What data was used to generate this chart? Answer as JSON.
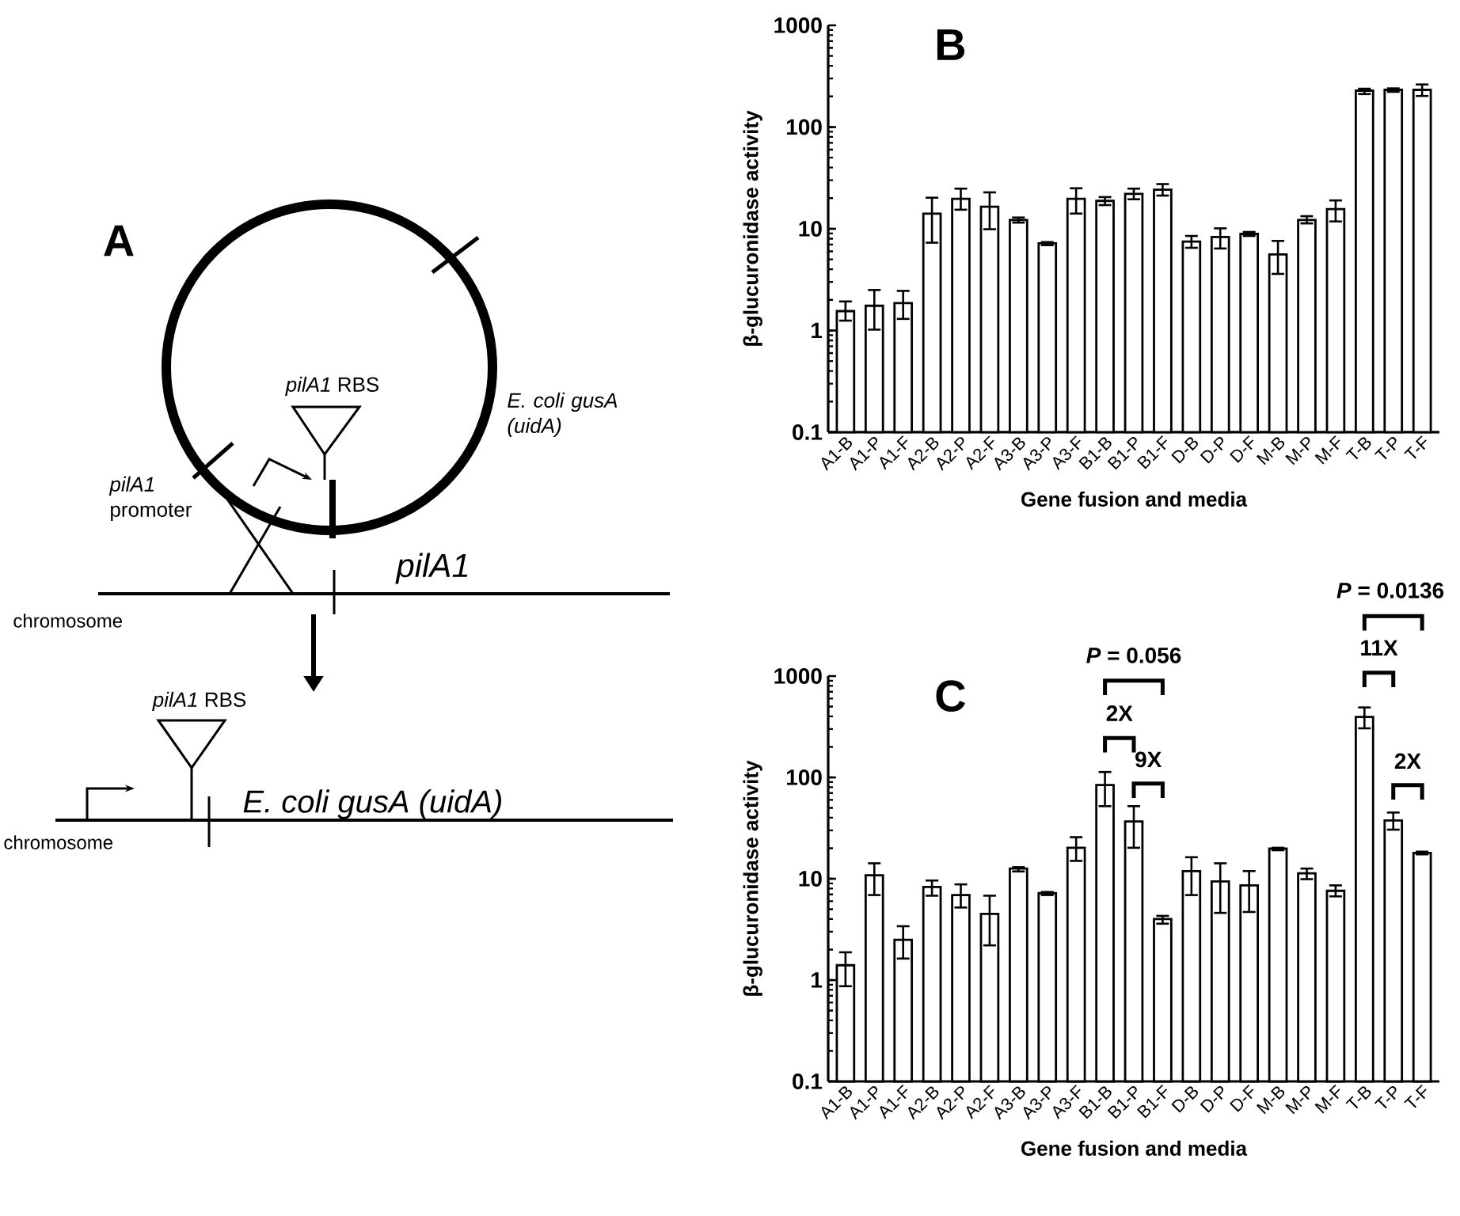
{
  "chart_data": [
    {
      "type": "other",
      "title": "A",
      "annotations": [
        "*pilA1* RBS",
        "E. coli gusA (uidA)",
        "*pilA1* promoter",
        "pilA1",
        "chromosome",
        "*pilA1* RBS",
        "E. coli gusA (uidA)",
        "chromosome"
      ]
    },
    {
      "type": "bar",
      "title": "B",
      "ylabel": "β-glucuronidase activity",
      "xlabel": "Gene fusion and media",
      "log": true,
      "color": "#ffffff",
      "grid": false,
      "categories": [
        "A1-B",
        "A1-P",
        "A1-F",
        "A2-B",
        "A2-P",
        "A2-F",
        "A3-B",
        "A3-P",
        "A3-F",
        "B1-B",
        "B1-P",
        "B1-F",
        "D-B",
        "D-P",
        "D-F",
        "M-B",
        "M-P",
        "M-F",
        "T-B",
        "T-P",
        "T-F"
      ],
      "values": [
        1.55,
        1.75,
        1.86,
        14.1,
        19.7,
        16.5,
        12.2,
        7.2,
        19.7,
        18.8,
        22.0,
        24.2,
        7.5,
        8.3,
        8.9,
        5.6,
        12.2,
        15.6,
        228,
        232,
        232
      ],
      "errors": [
        [
          1.25,
          1.93
        ],
        [
          1.02,
          2.5
        ],
        [
          1.3,
          2.45
        ],
        [
          7.3,
          20.2
        ],
        [
          15.4,
          24.8
        ],
        [
          9.9,
          22.8
        ],
        [
          11.5,
          12.9
        ],
        [
          6.9,
          7.4
        ],
        [
          14.1,
          25
        ],
        [
          17.1,
          20.5
        ],
        [
          19.5,
          24.8
        ],
        [
          21.2,
          27.5
        ],
        [
          6.5,
          8.5
        ],
        [
          6.4,
          10.1
        ],
        [
          8.5,
          9.3
        ],
        [
          3.6,
          7.6
        ],
        [
          11.3,
          13.3
        ],
        [
          11.8,
          19.0
        ],
        [
          211,
          238
        ],
        [
          222,
          240
        ],
        [
          202,
          262
        ]
      ],
      "ylim": [
        0.1,
        1000
      ],
      "yticks": [
        0.1,
        1,
        10,
        100,
        1000
      ]
    },
    {
      "type": "bar",
      "title": "C",
      "ylabel": "β-glucuronidase activity",
      "xlabel": "Gene fusion and media",
      "log": true,
      "color": "#ffffff",
      "grid": false,
      "categories": [
        "A1-B",
        "A1-P",
        "A1-F",
        "A2-B",
        "A2-P",
        "A2-F",
        "A3-B",
        "A3-P",
        "A3-F",
        "B1-B",
        "B1-P",
        "B1-F",
        "D-B",
        "D-P",
        "D-F",
        "M-B",
        "M-P",
        "M-F",
        "T-B",
        "T-P",
        "T-F"
      ],
      "values": [
        1.4,
        10.8,
        2.5,
        8.3,
        6.9,
        4.5,
        12.6,
        7.2,
        20.2,
        84,
        36.7,
        4.0,
        11.9,
        9.4,
        8.6,
        19.8,
        11.3,
        7.6,
        395,
        37.6,
        18.0
      ],
      "errors": [
        [
          0.87,
          1.88
        ],
        [
          6.9,
          14.2
        ],
        [
          1.63,
          3.4
        ],
        [
          6.8,
          9.6
        ],
        [
          5.2,
          8.8
        ],
        [
          2.2,
          6.8
        ],
        [
          11.8,
          13.0
        ],
        [
          6.9,
          7.4
        ],
        [
          15.0,
          25.7
        ],
        [
          52,
          113
        ],
        [
          20.2,
          52
        ],
        [
          3.6,
          4.3
        ],
        [
          6.9,
          16.3
        ],
        [
          4.6,
          14.2
        ],
        [
          4.7,
          11.9
        ],
        [
          19.1,
          20.2
        ],
        [
          9.9,
          12.6
        ],
        [
          6.7,
          8.6
        ],
        [
          305,
          490
        ],
        [
          30.5,
          45
        ],
        [
          17.4,
          18.5
        ]
      ],
      "ylim": [
        0.1,
        1000
      ],
      "yticks": [
        0.1,
        1,
        10,
        100,
        1000
      ],
      "annotations": [
        "*P* = 0.0136",
        "*P* = 0.056",
        "11X",
        "2X",
        "9X",
        "2X"
      ]
    }
  ]
}
